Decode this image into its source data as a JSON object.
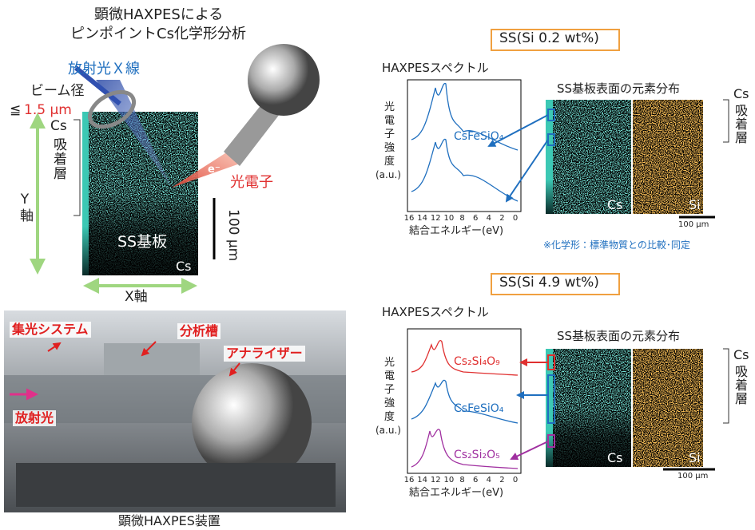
{
  "left": {
    "title": [
      "顕微HAXPESによる",
      "ピンポイントCs化学形分析"
    ],
    "beam": "放射光Ｘ線",
    "beam_diameter": "ビーム径",
    "beam_size_prefix": "≦",
    "beam_size": "1.5 μm",
    "electron": "e⁻",
    "photoelectron": "光電子",
    "layer": {
      "cs": "Cs",
      "rest": "吸着層"
    },
    "y_axis": "Y軸",
    "x_axis": "X軸",
    "substrate": "SS基板",
    "element": "Cs",
    "scale": "100 μm"
  },
  "photo": {
    "labels": [
      "集光システム",
      "分析槽",
      "アナライザー",
      "放射光"
    ],
    "caption": "顕微HAXPES装置"
  },
  "panels": [
    {
      "sample": "SS(Si 0.2 wt%)",
      "spectrum_title": "HAXPESスペクトル",
      "y_label": [
        "光",
        "電",
        "子",
        "強",
        "度",
        "(a.u.)"
      ],
      "xticks": [
        16,
        14,
        12,
        10,
        8,
        6,
        4,
        2,
        0
      ],
      "x_label": "結合エネルギー(eV)",
      "species": [
        "CsFeSiO₄"
      ],
      "map_title": "SS基板表面の元素分布",
      "maps": [
        "Cs",
        "Si"
      ],
      "scale": "100 μm",
      "layer": {
        "cs": "Cs",
        "rest": "吸着層"
      }
    },
    {
      "sample": "SS(Si 4.9 wt%)",
      "spectrum_title": "HAXPESスペクトル",
      "y_label": [
        "光",
        "電",
        "子",
        "強",
        "度",
        "(a.u.)"
      ],
      "xticks": [
        16,
        14,
        12,
        10,
        8,
        6,
        4,
        2,
        0
      ],
      "x_label": "結合エネルギー(eV)",
      "species": [
        "Cs₂Si₄O₉",
        "CsFeSiO₄",
        "Cs₂Si₂O₅"
      ],
      "map_title": "SS基板表面の元素分布",
      "maps": [
        "Cs",
        "Si"
      ],
      "scale": "100 μm",
      "layer": {
        "cs": "Cs",
        "rest": "吸着層"
      }
    }
  ],
  "note": "※化学形：標準物質との比較･同定"
}
